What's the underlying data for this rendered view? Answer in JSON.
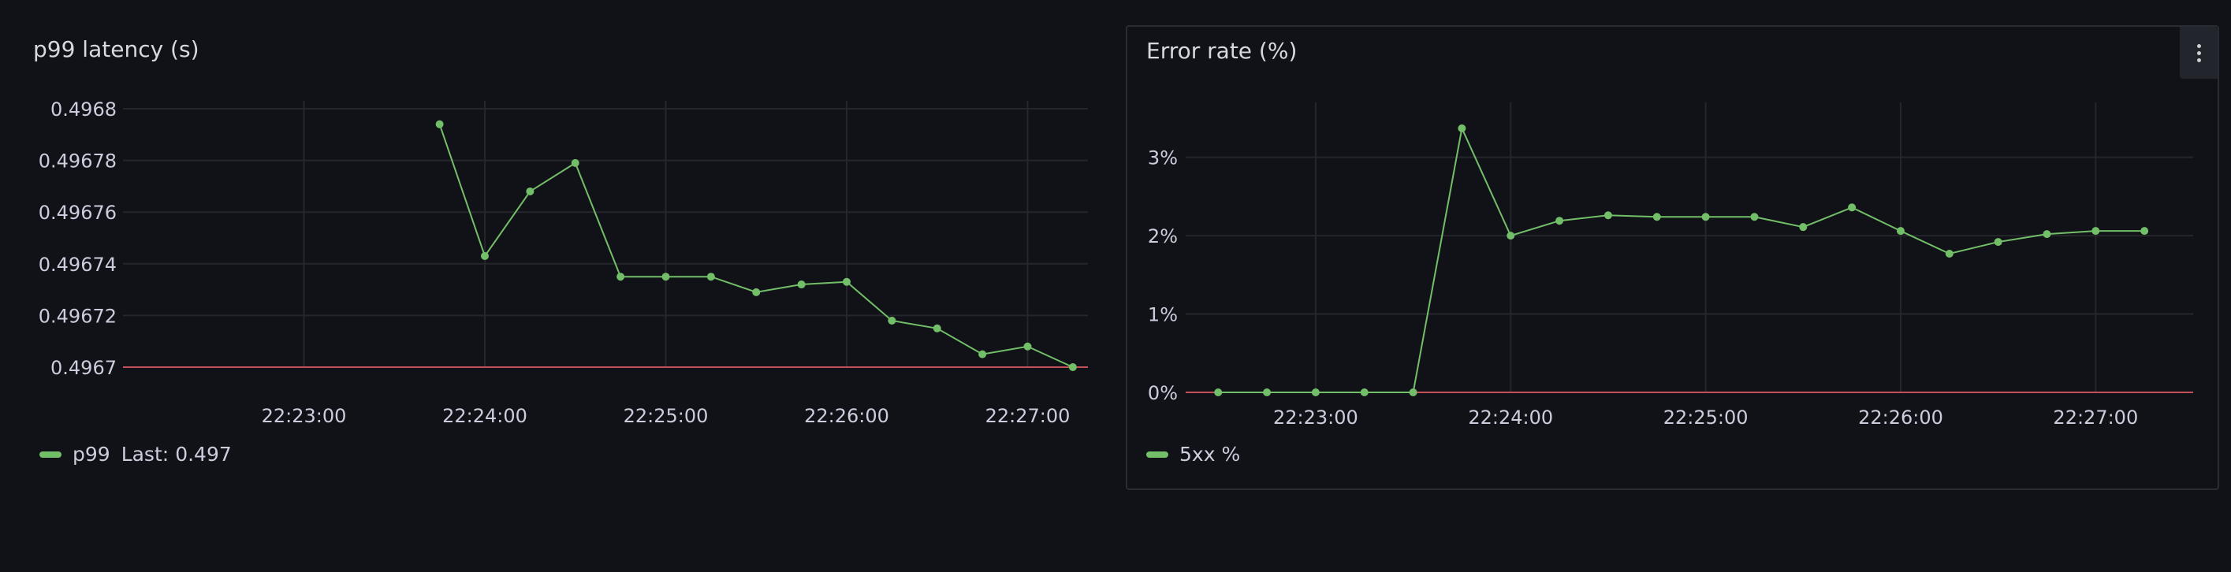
{
  "colors": {
    "series": "#73bf69",
    "threshold": "#c4515a",
    "grid": "#24262c",
    "background": "#111217"
  },
  "panels": [
    {
      "title": "p99 latency (s)",
      "legend": {
        "name": "p99",
        "calc_label": "Last:",
        "calc_value": "0.497"
      },
      "menu_icon": "kebab-menu-icon"
    },
    {
      "title": "Error rate (%)",
      "legend": {
        "name": "5xx %"
      },
      "menu_icon": "kebab-menu-icon"
    }
  ],
  "chart_data": [
    {
      "type": "line",
      "title": "p99 latency (s)",
      "xlabel": "",
      "ylabel": "",
      "x_ticks": [
        "22:23:00",
        "22:24:00",
        "22:25:00",
        "22:26:00",
        "22:27:00"
      ],
      "y_ticks": [
        "0.4967",
        "0.49672",
        "0.49674",
        "0.49676",
        "0.49678",
        "0.4968"
      ],
      "ylim": [
        0.4967,
        0.4968
      ],
      "threshold": 0.4967,
      "grid": true,
      "legend_position": "bottom-left",
      "series": [
        {
          "name": "p99",
          "x": [
            "22:23:45",
            "22:24:00",
            "22:24:15",
            "22:24:30",
            "22:24:45",
            "22:25:00",
            "22:25:15",
            "22:25:30",
            "22:25:45",
            "22:26:00",
            "22:26:15",
            "22:26:30",
            "22:26:45",
            "22:27:00",
            "22:27:15"
          ],
          "values": [
            0.496794,
            0.496743,
            0.496768,
            0.496779,
            0.496735,
            0.496735,
            0.496735,
            0.496729,
            0.496732,
            0.496733,
            0.496718,
            0.496715,
            0.496705,
            0.496708,
            0.4967
          ]
        }
      ]
    },
    {
      "type": "line",
      "title": "Error rate (%)",
      "xlabel": "",
      "ylabel": "",
      "x_ticks": [
        "22:23:00",
        "22:24:00",
        "22:25:00",
        "22:26:00",
        "22:27:00"
      ],
      "y_ticks": [
        "0%",
        "1%",
        "2%",
        "3%"
      ],
      "ylim": [
        0,
        3.6
      ],
      "threshold": 0,
      "grid": true,
      "legend_position": "bottom-left",
      "series": [
        {
          "name": "5xx %",
          "x": [
            "22:22:30",
            "22:22:45",
            "22:23:00",
            "22:23:15",
            "22:23:30",
            "22:23:45",
            "22:24:00",
            "22:24:15",
            "22:24:30",
            "22:24:45",
            "22:25:00",
            "22:25:15",
            "22:25:30",
            "22:25:45",
            "22:26:00",
            "22:26:15",
            "22:26:30",
            "22:26:45",
            "22:27:00",
            "22:27:15"
          ],
          "values": [
            0,
            0,
            0,
            0,
            0,
            3.37,
            2.0,
            2.19,
            2.26,
            2.24,
            2.24,
            2.24,
            2.11,
            2.36,
            2.06,
            1.77,
            1.92,
            2.02,
            2.06,
            2.06
          ]
        }
      ]
    }
  ]
}
